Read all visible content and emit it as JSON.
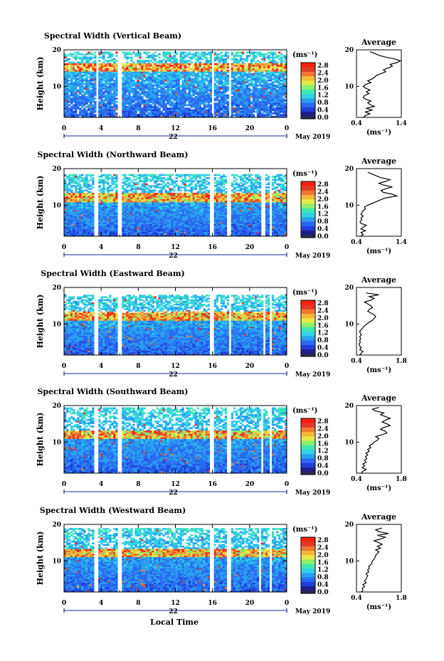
{
  "figure": {
    "xlabel": "Local Time",
    "date_label": "May 2019",
    "colors": {
      "background": "#ffffff",
      "axis": "#000000",
      "date_arrow": "#1a2a8c",
      "colormap": [
        "#1e1e8c",
        "#1f3fd8",
        "#2a6af0",
        "#2aa0f0",
        "#33d2e6",
        "#3fe8b0",
        "#8cf06a",
        "#e8e84a",
        "#f5b83a",
        "#f07830",
        "#e03a28",
        "#ff2010"
      ],
      "no_data": "#2a2a55"
    }
  },
  "chart_data": [
    {
      "type": "heatmap",
      "title": "Spectral Width (Vertical Beam)",
      "ylabel": "Height (km)",
      "xlabel": "Local Time",
      "x_ticks": [
        "0",
        "4",
        "8",
        "12",
        "16",
        "20",
        "0"
      ],
      "x_range": [
        0,
        24
      ],
      "date_day": "22",
      "date_label": "May 2019",
      "y_ticks": [
        "20",
        "10"
      ],
      "y_range": [
        1.5,
        20
      ],
      "data_top_km": 19.5,
      "gaps_hours": [
        [
          3.4,
          3.8
        ],
        [
          5.8,
          6.3
        ],
        [
          15.9,
          16.1
        ],
        [
          17.7,
          18.1
        ],
        [
          21.6,
          21.8
        ],
        [
          22.3,
          22.5
        ]
      ],
      "colorbar": {
        "unit": "(ms⁻¹)",
        "ticks": [
          "2.8",
          "2.4",
          "2.0",
          "1.6",
          "1.2",
          "0.8",
          "0.4",
          "0.0"
        ],
        "range": [
          0,
          3.0
        ]
      },
      "average": {
        "title": "Average",
        "xlabel": "(ms⁻¹)",
        "x_ticks": [
          "0.4",
          "1.4"
        ],
        "x_range": [
          0.4,
          1.4
        ],
        "y_ticks": [
          "20",
          "10"
        ],
        "profile": [
          [
            1.5,
            0.55
          ],
          [
            2,
            0.6
          ],
          [
            2.5,
            0.7
          ],
          [
            3,
            0.6
          ],
          [
            3.5,
            0.75
          ],
          [
            4,
            0.62
          ],
          [
            4.5,
            0.8
          ],
          [
            5,
            0.7
          ],
          [
            5.5,
            0.65
          ],
          [
            6,
            0.72
          ],
          [
            6.5,
            0.6
          ],
          [
            7,
            0.55
          ],
          [
            7.5,
            0.58
          ],
          [
            8,
            0.68
          ],
          [
            8.5,
            0.62
          ],
          [
            9,
            0.7
          ],
          [
            9.5,
            0.6
          ],
          [
            10,
            0.55
          ],
          [
            10.5,
            0.6
          ],
          [
            11,
            0.72
          ],
          [
            11.5,
            0.65
          ],
          [
            12,
            0.75
          ],
          [
            12.5,
            0.8
          ],
          [
            13,
            0.85
          ],
          [
            13.5,
            0.95
          ],
          [
            14,
            1.05
          ],
          [
            14.5,
            1.0
          ],
          [
            15,
            1.1
          ],
          [
            15.5,
            1.2
          ],
          [
            16,
            1.15
          ],
          [
            16.5,
            1.3
          ],
          [
            17,
            1.38
          ],
          [
            17.5,
            1.25
          ],
          [
            18,
            1.05
          ],
          [
            18.5,
            0.9
          ],
          [
            19,
            0.8
          ],
          [
            19.5,
            0.7
          ]
        ]
      }
    },
    {
      "type": "heatmap",
      "title": "Spectral Width (Northward Beam)",
      "ylabel": "Height (km)",
      "xlabel": "Local Time",
      "x_ticks": [
        "0",
        "4",
        "8",
        "12",
        "16",
        "20",
        "0"
      ],
      "x_range": [
        0,
        24
      ],
      "date_day": "22",
      "date_label": "May 2019",
      "y_ticks": [
        "20",
        "10"
      ],
      "y_range": [
        1.5,
        20
      ],
      "data_top_km": 18.5,
      "gaps_hours": [
        [
          3.2,
          3.6
        ],
        [
          5.7,
          6.2
        ],
        [
          15.8,
          16.2
        ],
        [
          17.6,
          18.0
        ],
        [
          21.2,
          21.6
        ],
        [
          22.1,
          22.4
        ]
      ],
      "colorbar": {
        "unit": "(ms⁻¹)",
        "ticks": [
          "2.8",
          "2.4",
          "2.0",
          "1.6",
          "1.2",
          "0.8",
          "0.4",
          "0.0"
        ],
        "range": [
          0,
          3.0
        ]
      },
      "average": {
        "title": "Average",
        "xlabel": "(ms⁻¹)",
        "x_ticks": [
          "0.4",
          "1.4"
        ],
        "x_range": [
          0.4,
          1.4
        ],
        "y_ticks": [
          "20",
          "10"
        ],
        "profile": [
          [
            1.5,
            0.5
          ],
          [
            2,
            0.55
          ],
          [
            2.5,
            0.5
          ],
          [
            3,
            0.6
          ],
          [
            3.5,
            0.5
          ],
          [
            4,
            0.55
          ],
          [
            4.5,
            0.62
          ],
          [
            5,
            0.5
          ],
          [
            5.5,
            0.48
          ],
          [
            6,
            0.52
          ],
          [
            6.5,
            0.5
          ],
          [
            7,
            0.55
          ],
          [
            7.5,
            0.5
          ],
          [
            8,
            0.52
          ],
          [
            8.5,
            0.55
          ],
          [
            9,
            0.6
          ],
          [
            9.5,
            0.58
          ],
          [
            10,
            0.65
          ],
          [
            10.5,
            0.75
          ],
          [
            11,
            0.85
          ],
          [
            11.5,
            0.95
          ],
          [
            12,
            1.05
          ],
          [
            12.5,
            1.3
          ],
          [
            13,
            1.2
          ],
          [
            13.5,
            1.0
          ],
          [
            14,
            0.95
          ],
          [
            14.5,
            1.05
          ],
          [
            15,
            1.2
          ],
          [
            15.5,
            1.0
          ],
          [
            16,
            0.9
          ],
          [
            16.5,
            1.05
          ],
          [
            17,
            1.15
          ],
          [
            17.5,
            0.95
          ],
          [
            18,
            0.85
          ],
          [
            18.5,
            0.75
          ],
          [
            19,
            0.65
          ]
        ]
      }
    },
    {
      "type": "heatmap",
      "title": "Spectral Width (Eastward Beam)",
      "ylabel": "Height (km)",
      "xlabel": "Local Time",
      "x_ticks": [
        "0",
        "4",
        "8",
        "12",
        "16",
        "20",
        "0"
      ],
      "x_range": [
        0,
        24
      ],
      "date_day": "22",
      "date_label": "May 2019",
      "y_ticks": [
        "20",
        "10"
      ],
      "y_range": [
        1.5,
        20
      ],
      "data_top_km": 18.0,
      "gaps_hours": [
        [
          3.3,
          3.7
        ],
        [
          5.8,
          6.2
        ],
        [
          15.8,
          16.2
        ],
        [
          17.7,
          18.0
        ],
        [
          21.5,
          21.8
        ],
        [
          22.2,
          22.5
        ]
      ],
      "colorbar": {
        "unit": "(ms⁻¹)",
        "ticks": [
          "2.8",
          "2.4",
          "2.0",
          "1.6",
          "1.2",
          "0.8",
          "0.4",
          "0.0"
        ],
        "range": [
          0,
          3.0
        ]
      },
      "average": {
        "title": "Average",
        "xlabel": "(ms⁻¹)",
        "x_ticks": [
          "0.4",
          "1.8"
        ],
        "x_range": [
          0.4,
          1.8
        ],
        "y_ticks": [
          "20",
          "10"
        ],
        "profile": [
          [
            1.5,
            0.5
          ],
          [
            2,
            0.55
          ],
          [
            2.5,
            0.6
          ],
          [
            3,
            0.5
          ],
          [
            3.5,
            0.55
          ],
          [
            4,
            0.5
          ],
          [
            4.5,
            0.48
          ],
          [
            5,
            0.52
          ],
          [
            5.5,
            0.5
          ],
          [
            6,
            0.53
          ],
          [
            6.5,
            0.5
          ],
          [
            7,
            0.55
          ],
          [
            7.5,
            0.52
          ],
          [
            8,
            0.5
          ],
          [
            8.5,
            0.55
          ],
          [
            9,
            0.6
          ],
          [
            9.5,
            0.65
          ],
          [
            10,
            0.72
          ],
          [
            10.5,
            0.8
          ],
          [
            11,
            0.9
          ],
          [
            11.5,
            0.95
          ],
          [
            12,
            1.0
          ],
          [
            12.5,
            0.95
          ],
          [
            13,
            0.85
          ],
          [
            13.5,
            0.75
          ],
          [
            14,
            0.8
          ],
          [
            14.5,
            0.9
          ],
          [
            15,
            0.85
          ],
          [
            15.5,
            0.75
          ],
          [
            16,
            0.65
          ],
          [
            16.5,
            0.85
          ],
          [
            17,
            0.95
          ],
          [
            17.5,
            0.8
          ],
          [
            18,
            1.1
          ],
          [
            18.5,
            0.7
          ]
        ]
      }
    },
    {
      "type": "heatmap",
      "title": "Spectral Width (Southward Beam)",
      "ylabel": "Height (km)",
      "xlabel": "Local Time",
      "x_ticks": [
        "0",
        "4",
        "8",
        "12",
        "16",
        "20",
        "0"
      ],
      "x_range": [
        0,
        24
      ],
      "date_day": "22",
      "date_label": "May 2019",
      "y_ticks": [
        "20",
        "10"
      ],
      "y_range": [
        1.5,
        20
      ],
      "data_top_km": 19.5,
      "gaps_hours": [
        [
          3.3,
          3.7
        ],
        [
          5.8,
          6.2
        ],
        [
          15.8,
          16.2
        ],
        [
          17.6,
          18.0
        ],
        [
          21.2,
          21.5
        ],
        [
          22.2,
          22.5
        ]
      ],
      "colorbar": {
        "unit": "(ms⁻¹)",
        "ticks": [
          "2.8",
          "2.4",
          "2.0",
          "1.6",
          "1.2",
          "0.8",
          "0.4",
          "0.0"
        ],
        "range": [
          0,
          3.0
        ]
      },
      "average": {
        "title": "Average",
        "xlabel": "(ms⁻¹)",
        "x_ticks": [
          "0.4",
          "1.8"
        ],
        "x_range": [
          0.4,
          1.8
        ],
        "y_ticks": [
          "20",
          "10"
        ],
        "profile": [
          [
            1.5,
            0.55
          ],
          [
            2,
            0.6
          ],
          [
            2.5,
            0.7
          ],
          [
            3,
            0.58
          ],
          [
            3.5,
            0.65
          ],
          [
            4,
            0.6
          ],
          [
            4.5,
            0.7
          ],
          [
            5,
            0.65
          ],
          [
            5.5,
            0.72
          ],
          [
            6,
            0.68
          ],
          [
            6.5,
            0.75
          ],
          [
            7,
            0.7
          ],
          [
            7.5,
            0.8
          ],
          [
            8,
            0.75
          ],
          [
            8.5,
            0.85
          ],
          [
            9,
            0.8
          ],
          [
            9.5,
            0.9
          ],
          [
            10,
            0.95
          ],
          [
            10.5,
            1.05
          ],
          [
            11,
            1.1
          ],
          [
            11.5,
            1.0
          ],
          [
            12,
            1.2
          ],
          [
            12.5,
            1.35
          ],
          [
            13,
            1.3
          ],
          [
            13.5,
            1.15
          ],
          [
            14,
            1.25
          ],
          [
            14.5,
            1.45
          ],
          [
            15,
            1.35
          ],
          [
            15.5,
            1.2
          ],
          [
            16,
            1.3
          ],
          [
            16.5,
            1.45
          ],
          [
            17,
            1.3
          ],
          [
            17.5,
            1.15
          ],
          [
            18,
            1.25
          ],
          [
            18.5,
            1.0
          ],
          [
            19,
            0.9
          ],
          [
            19.5,
            1.1
          ]
        ]
      }
    },
    {
      "type": "heatmap",
      "title": "Spectral Width (Westward Beam)",
      "ylabel": "Height (km)",
      "xlabel": "Local Time",
      "x_ticks": [
        "0",
        "4",
        "8",
        "12",
        "16",
        "20",
        "0"
      ],
      "x_range": [
        0,
        24
      ],
      "date_day": "22",
      "date_label": "May 2019",
      "y_ticks": [
        "20",
        "10"
      ],
      "y_range": [
        1.5,
        20
      ],
      "data_top_km": 19.0,
      "gaps_hours": [
        [
          3.3,
          3.7
        ],
        [
          5.8,
          6.2
        ],
        [
          15.8,
          16.2
        ],
        [
          17.6,
          18.0
        ],
        [
          21.0,
          21.3
        ],
        [
          22.2,
          22.5
        ]
      ],
      "colorbar": {
        "unit": "(ms⁻¹)",
        "ticks": [
          "2.8",
          "2.4",
          "2.0",
          "1.6",
          "1.2",
          "0.8",
          "0.4",
          "0.0"
        ],
        "range": [
          0,
          3.0
        ]
      },
      "average": {
        "title": "Average",
        "xlabel": "(ms⁻¹)",
        "x_ticks": [
          "0.4",
          "1.8"
        ],
        "x_range": [
          0.4,
          1.8
        ],
        "y_ticks": [
          "20",
          "10"
        ],
        "profile": [
          [
            1.5,
            0.55
          ],
          [
            2,
            0.6
          ],
          [
            2.5,
            0.58
          ],
          [
            3,
            0.65
          ],
          [
            3.5,
            0.6
          ],
          [
            4,
            0.7
          ],
          [
            4.5,
            0.65
          ],
          [
            5,
            0.7
          ],
          [
            5.5,
            0.72
          ],
          [
            6,
            0.75
          ],
          [
            6.5,
            0.7
          ],
          [
            7,
            0.78
          ],
          [
            7.5,
            0.75
          ],
          [
            8,
            0.8
          ],
          [
            8.5,
            0.78
          ],
          [
            9,
            0.85
          ],
          [
            9.5,
            0.88
          ],
          [
            10,
            0.9
          ],
          [
            10.5,
            0.95
          ],
          [
            11,
            0.98
          ],
          [
            11.5,
            1.0
          ],
          [
            12,
            1.05
          ],
          [
            12.5,
            1.1
          ],
          [
            13,
            1.0
          ],
          [
            13.5,
            1.15
          ],
          [
            14,
            1.05
          ],
          [
            14.5,
            1.2
          ],
          [
            15,
            1.1
          ],
          [
            15.5,
            0.95
          ],
          [
            16,
            1.15
          ],
          [
            16.5,
            1.3
          ],
          [
            17,
            1.05
          ],
          [
            17.5,
            1.4
          ],
          [
            18,
            1.1
          ],
          [
            18.5,
            1.0
          ],
          [
            19,
            1.2
          ]
        ]
      }
    }
  ]
}
